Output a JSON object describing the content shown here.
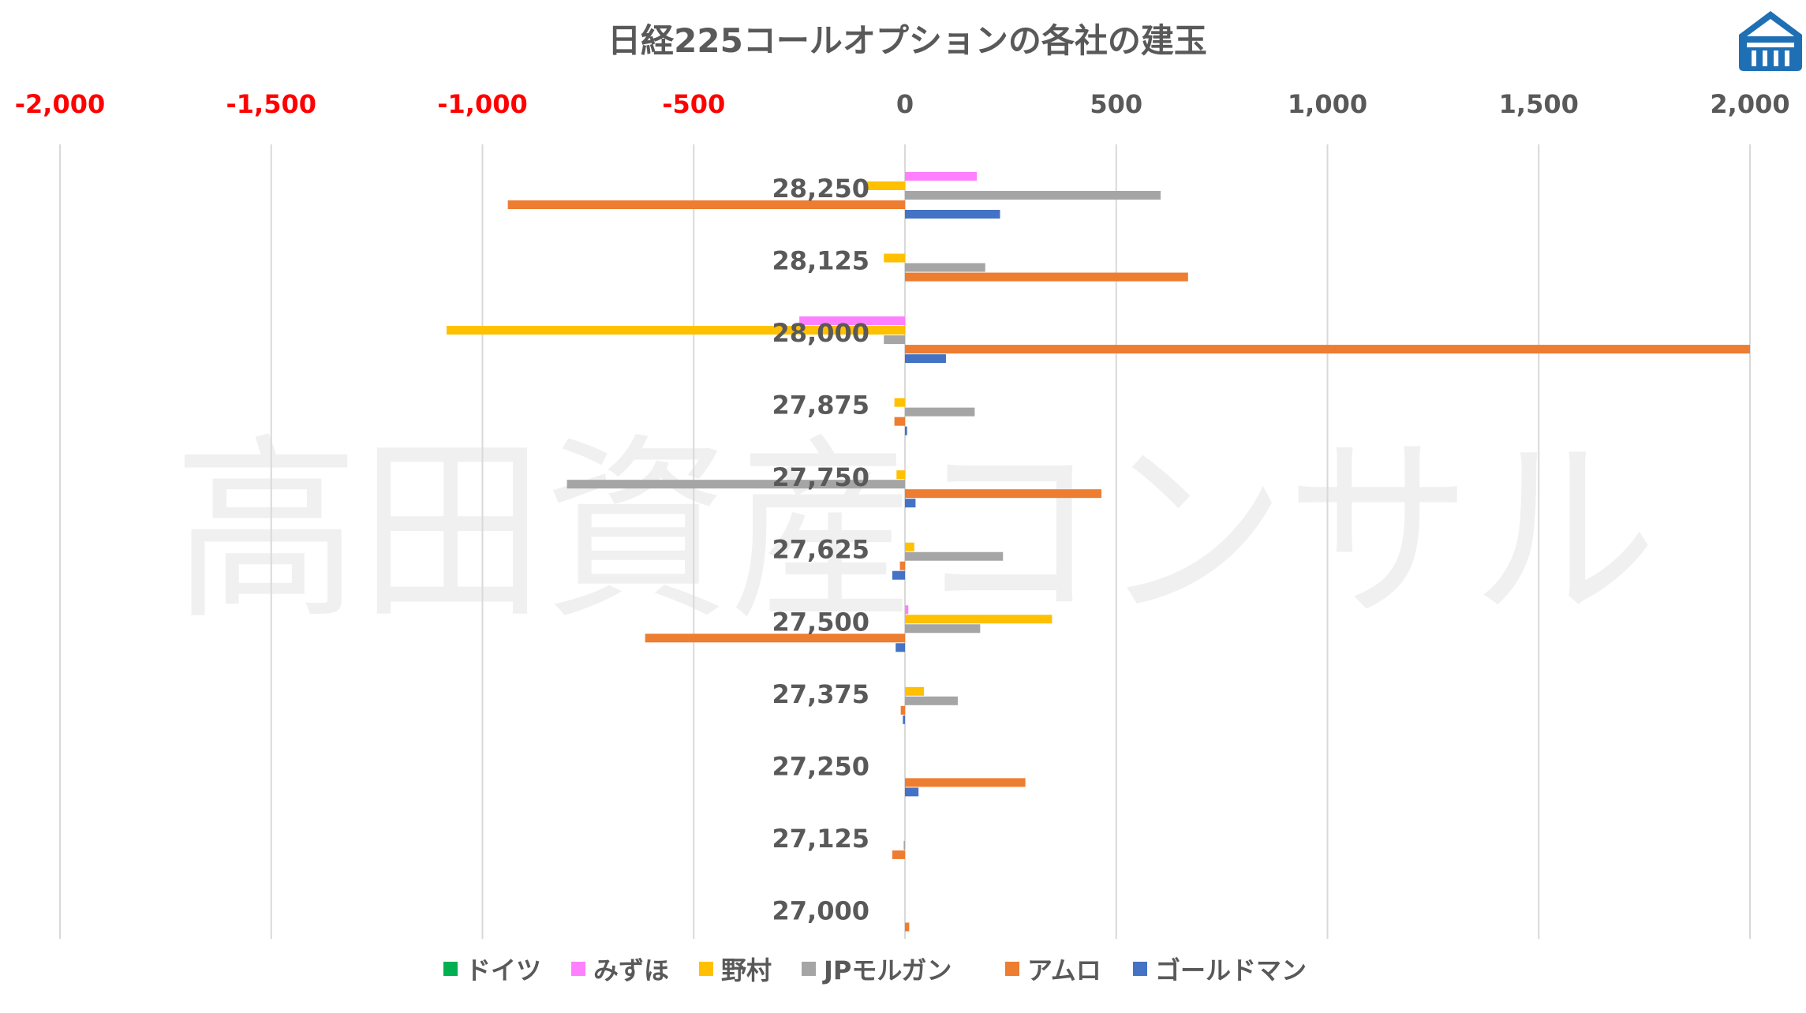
{
  "chart_data": {
    "type": "bar",
    "orientation": "horizontal",
    "title": "日経225コールオプションの各社の建玉",
    "xlim": [
      -2000,
      2000
    ],
    "x_ticks": [
      {
        "value": -2000,
        "label": "-2,000"
      },
      {
        "value": -1500,
        "label": "-1,500"
      },
      {
        "value": -1000,
        "label": "-1,000"
      },
      {
        "value": -500,
        "label": "-500"
      },
      {
        "value": 0,
        "label": "0"
      },
      {
        "value": 500,
        "label": "500"
      },
      {
        "value": 1000,
        "label": "1,000"
      },
      {
        "value": 1500,
        "label": "1,500"
      },
      {
        "value": 2000,
        "label": "2,000"
      }
    ],
    "axis_position": "top",
    "grid": true,
    "legend_position": "bottom",
    "categories": [
      "28,250",
      "28,125",
      "28,000",
      "27,875",
      "27,750",
      "27,625",
      "27,500",
      "27,375",
      "27,250",
      "27,125",
      "27,000"
    ],
    "series": [
      {
        "name": "ドイツ",
        "color": "#00b050",
        "values": [
          0,
          0,
          0,
          0,
          0,
          0,
          0,
          0,
          0,
          0,
          0
        ]
      },
      {
        "name": "みずほ",
        "color": "#ff80ff",
        "values": [
          170,
          0,
          -250,
          0,
          0,
          0,
          8,
          0,
          0,
          0,
          0
        ]
      },
      {
        "name": "野村",
        "color": "#ffc000",
        "values": [
          -90,
          -50,
          -1085,
          -25,
          -20,
          22,
          348,
          45,
          0,
          0,
          0
        ]
      },
      {
        "name": "JPモルガン",
        "color": "#a5a5a5",
        "values": [
          605,
          190,
          -50,
          165,
          -800,
          232,
          178,
          125,
          0,
          -3,
          0
        ]
      },
      {
        "name": "アムロ",
        "color": "#ed7d31",
        "values": [
          -940,
          670,
          2000,
          -25,
          465,
          -12,
          -615,
          -10,
          285,
          -30,
          10
        ]
      },
      {
        "name": "ゴールドマン",
        "color": "#4472c4",
        "values": [
          225,
          0,
          97,
          5,
          25,
          -30,
          -22,
          -5,
          32,
          0,
          0
        ]
      }
    ]
  },
  "watermark": "高田資産コンサル",
  "colors": {
    "positive_tick": "#595959",
    "negative_tick": "#ff0000",
    "grid": "#d9d9d9",
    "logo": "#1f6fb5"
  },
  "logo_icon": "takada-logo-icon"
}
